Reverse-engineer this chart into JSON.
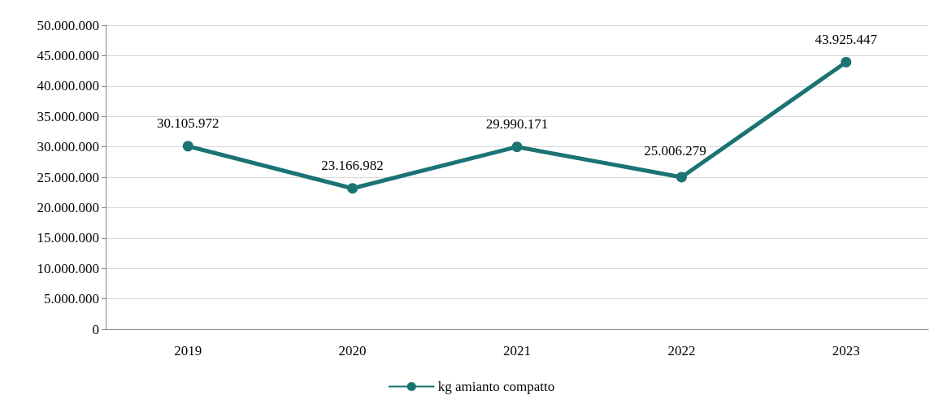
{
  "chart_data": {
    "type": "line",
    "categories": [
      "2019",
      "2020",
      "2021",
      "2022",
      "2023"
    ],
    "series": [
      {
        "name": "kg amianto compatto",
        "color": "#1b7373",
        "values": [
          30105972,
          23166982,
          29990171,
          25006279,
          43925447
        ],
        "value_labels": [
          "30.105.972",
          "23.166.982",
          "29.990.171",
          "25.006.279",
          "43.925.447"
        ]
      }
    ],
    "ylim": [
      0,
      50000000
    ],
    "yticks": [
      {
        "value": 0,
        "label": "0"
      },
      {
        "value": 5000000,
        "label": "5.000.000"
      },
      {
        "value": 10000000,
        "label": "10.000.000"
      },
      {
        "value": 15000000,
        "label": "15.000.000"
      },
      {
        "value": 20000000,
        "label": "20.000.000"
      },
      {
        "value": 25000000,
        "label": "25.000.000"
      },
      {
        "value": 30000000,
        "label": "30.000.000"
      },
      {
        "value": 35000000,
        "label": "35.000.000"
      },
      {
        "value": 40000000,
        "label": "40.000.000"
      },
      {
        "value": 45000000,
        "label": "45.000.000"
      },
      {
        "value": 50000000,
        "label": "50.000.000"
      }
    ],
    "grid": "y",
    "legend": "bottom",
    "marker": "circle",
    "line_style": "solid"
  }
}
